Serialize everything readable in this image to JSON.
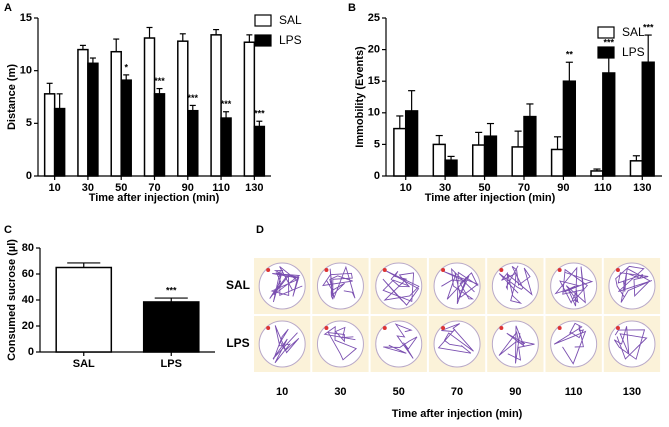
{
  "chart_data": [
    {
      "type": "bar",
      "panel": "A",
      "y_label": "Distance (m)",
      "x_label": "Time after injection (min)",
      "categories": [
        "10",
        "30",
        "50",
        "70",
        "90",
        "110",
        "130"
      ],
      "series": [
        {
          "name": "SAL",
          "color": "#ffffff",
          "values": [
            7.8,
            12.0,
            11.8,
            13.1,
            12.8,
            13.4,
            12.7
          ],
          "errors": [
            1.0,
            0.4,
            1.2,
            1.0,
            0.7,
            0.5,
            0.7
          ]
        },
        {
          "name": "LPS",
          "color": "#000000",
          "values": [
            6.4,
            10.7,
            9.1,
            7.8,
            6.2,
            5.5,
            4.7
          ],
          "errors": [
            1.4,
            0.5,
            0.5,
            0.5,
            0.5,
            0.6,
            0.5
          ],
          "annotations": [
            null,
            null,
            "*",
            "***",
            "***",
            "***",
            "***"
          ]
        }
      ],
      "ylim": [
        0,
        15
      ],
      "yticks": [
        0,
        5,
        10,
        15
      ],
      "legend": "upper right"
    },
    {
      "type": "bar",
      "panel": "B",
      "y_label": "Immobility (Events)",
      "x_label": "Time after injection (min)",
      "categories": [
        "10",
        "30",
        "50",
        "70",
        "90",
        "110",
        "130"
      ],
      "series": [
        {
          "name": "SAL",
          "color": "#ffffff",
          "values": [
            7.5,
            5.0,
            4.9,
            4.6,
            4.2,
            0.8,
            2.4
          ],
          "errors": [
            2.0,
            1.4,
            2.0,
            2.5,
            2.0,
            0.3,
            0.8
          ]
        },
        {
          "name": "LPS",
          "color": "#000000",
          "values": [
            10.3,
            2.5,
            6.3,
            9.4,
            15.0,
            16.3,
            18.0
          ],
          "errors": [
            3.2,
            0.6,
            2.0,
            2.0,
            3.0,
            3.6,
            4.3
          ],
          "annotations": [
            null,
            null,
            null,
            null,
            "**",
            "***",
            "***"
          ]
        }
      ],
      "ylim": [
        0,
        25
      ],
      "yticks": [
        0,
        5,
        10,
        15,
        20,
        25
      ],
      "legend": "upper right"
    },
    {
      "type": "bar",
      "panel": "C",
      "y_label": "Consumed sucrose (µl)",
      "categories": [
        "SAL",
        "LPS"
      ],
      "values": [
        65,
        38.5
      ],
      "errors": [
        3.5,
        3.0
      ],
      "colors": [
        "#ffffff",
        "#000000"
      ],
      "annotations": [
        null,
        "***"
      ],
      "ylim": [
        0,
        80
      ],
      "yticks": [
        0,
        20,
        40,
        60,
        80
      ]
    }
  ],
  "panel_d": {
    "panel": "D",
    "rows": [
      "SAL",
      "LPS"
    ],
    "columns": [
      10,
      30,
      50,
      70,
      90,
      110,
      130
    ],
    "x_label": "Time after injection (min)"
  }
}
